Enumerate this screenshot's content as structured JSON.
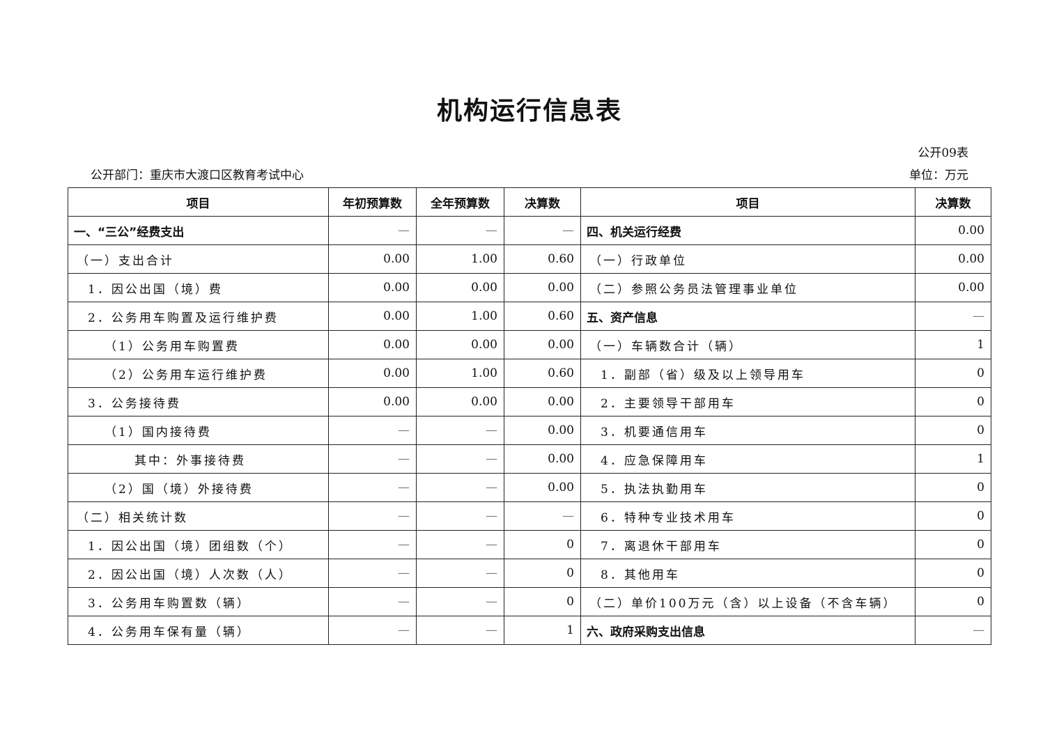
{
  "title": "机构运行信息表",
  "table_no": "公开09表",
  "unit": "单位：万元",
  "department": "公开部门：重庆市大渡口区教育考试中心",
  "headers": [
    "项目",
    "年初预算数",
    "全年预算数",
    "决算数",
    "项目",
    "决算数"
  ],
  "rows": [
    {
      "left": "一、“三公”经费支出",
      "lv": 0,
      "bold": true,
      "v1": "—",
      "v2": "—",
      "v3": "—",
      "right": "四、机关运行经费",
      "rlv": 0,
      "rbold": true,
      "rv": "0.00"
    },
    {
      "left": "（一）支出合计",
      "lv": 1,
      "v1": "0.00",
      "v2": "1.00",
      "v3": "0.60",
      "right": "（一）行政单位",
      "rlv": 1,
      "rv": "0.00"
    },
    {
      "left": "1．因公出国（境）费",
      "lv": 2,
      "v1": "0.00",
      "v2": "0.00",
      "v3": "0.00",
      "right": "（二）参照公务员法管理事业单位",
      "rlv": 1,
      "rv": "0.00"
    },
    {
      "left": "2．公务用车购置及运行维护费",
      "lv": 2,
      "v1": "0.00",
      "v2": "1.00",
      "v3": "0.60",
      "right": "五、资产信息",
      "rlv": 0,
      "rbold": true,
      "rv": "—"
    },
    {
      "left": "（1）公务用车购置费",
      "lv": 3,
      "v1": "0.00",
      "v2": "0.00",
      "v3": "0.00",
      "right": "（一）车辆数合计（辆）",
      "rlv": 1,
      "rv": "1"
    },
    {
      "left": "（2）公务用车运行维护费",
      "lv": 3,
      "v1": "0.00",
      "v2": "1.00",
      "v3": "0.60",
      "right": "1．副部（省）级及以上领导用车",
      "rlv": 2,
      "rv": "0"
    },
    {
      "left": "3．公务接待费",
      "lv": 2,
      "v1": "0.00",
      "v2": "0.00",
      "v3": "0.00",
      "right": "2．主要领导干部用车",
      "rlv": 2,
      "rv": "0"
    },
    {
      "left": "（1）国内接待费",
      "lv": 3,
      "v1": "—",
      "v2": "—",
      "v3": "0.00",
      "right": "3．机要通信用车",
      "rlv": 2,
      "rv": "0"
    },
    {
      "left": "其中：外事接待费",
      "lv": 4,
      "v1": "—",
      "v2": "—",
      "v3": "0.00",
      "right": "4．应急保障用车",
      "rlv": 2,
      "rv": "1"
    },
    {
      "left": "（2）国（境）外接待费",
      "lv": 3,
      "v1": "—",
      "v2": "—",
      "v3": "0.00",
      "right": "5．执法执勤用车",
      "rlv": 2,
      "rv": "0"
    },
    {
      "left": "（二）相关统计数",
      "lv": 1,
      "v1": "—",
      "v2": "—",
      "v3": "—",
      "right": "6．特种专业技术用车",
      "rlv": 2,
      "rv": "0"
    },
    {
      "left": "1．因公出国（境）团组数（个）",
      "lv": 2,
      "v1": "—",
      "v2": "—",
      "v3": "0",
      "right": "7．离退休干部用车",
      "rlv": 2,
      "rv": "0"
    },
    {
      "left": "2．因公出国（境）人次数（人）",
      "lv": 2,
      "v1": "—",
      "v2": "—",
      "v3": "0",
      "right": "8．其他用车",
      "rlv": 2,
      "rv": "0"
    },
    {
      "left": "3．公务用车购置数（辆）",
      "lv": 2,
      "v1": "—",
      "v2": "—",
      "v3": "0",
      "right": "（二）单价100万元（含）以上设备（不含车辆）",
      "rlv": 1,
      "rv": "0"
    },
    {
      "left": "4．公务用车保有量（辆）",
      "lv": 2,
      "v1": "—",
      "v2": "—",
      "v3": "1",
      "right": "六、政府采购支出信息",
      "rlv": 0,
      "rbold": true,
      "rv": "—"
    }
  ]
}
